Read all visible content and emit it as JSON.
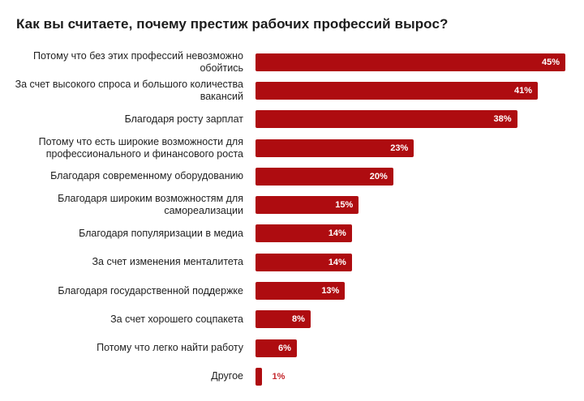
{
  "title": "Как вы считаете, почему престиж рабочих профессий вырос?",
  "colors": {
    "background": "#ffffff",
    "bar": "#ae0c10",
    "title_text": "#1c1c1c",
    "label_text": "#1f1f1f",
    "value_inside_text": "#ffffff",
    "value_outside_text": "#c4262b"
  },
  "chart_data": {
    "type": "bar",
    "orientation": "horizontal",
    "title": "Как вы считаете, почему престиж рабочих профессий вырос?",
    "categories": [
      "Потому что без этих профессий невозможно\nобойтись",
      "За счет высокого спроса и большого количества\nвакансий",
      "Благодаря росту зарплат",
      "Потому что есть широкие возможности для\nпрофессионального и финансового роста",
      "Благодаря современному оборудованию",
      "Благодаря широким возможностям для\nсамореализации",
      "Благодаря популяризации в медиа",
      "За счет изменения менталитета",
      "Благодаря государственной поддержке",
      "За счет хорошего соцпакета",
      "Потому что легко найти работу",
      "Другое"
    ],
    "values": [
      45,
      41,
      38,
      23,
      20,
      15,
      14,
      14,
      13,
      8,
      6,
      1
    ],
    "value_labels": [
      "45%",
      "41%",
      "38%",
      "23%",
      "20%",
      "15%",
      "14%",
      "14%",
      "13%",
      "8%",
      "6%",
      "1%"
    ],
    "value_suffix": "%",
    "xlabel": "",
    "ylabel": "",
    "xlim": [
      0,
      45
    ],
    "grid": false,
    "legend": false,
    "data_labels": "on-bars",
    "bar_color": "#ae0c10"
  }
}
